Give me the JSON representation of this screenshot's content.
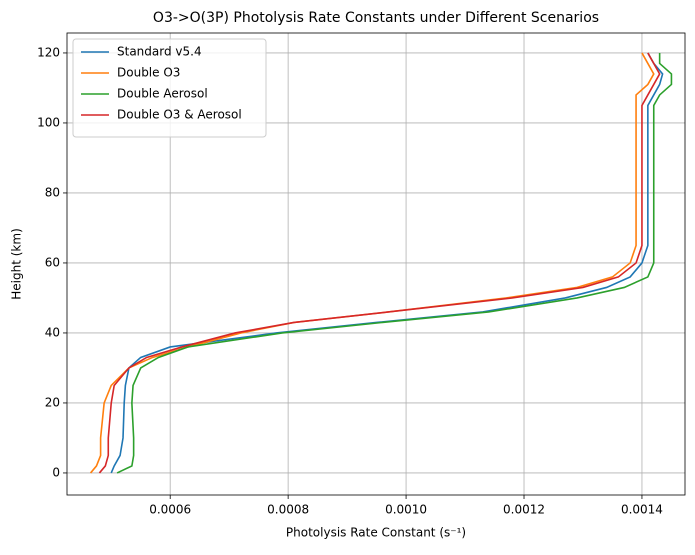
{
  "chart_data": {
    "type": "line",
    "title": "O3->O(3P) Photolysis Rate Constants under Different Scenarios",
    "xlabel": "Photolysis Rate Constant (s⁻¹)",
    "ylabel": "Height (km)",
    "y": [
      0,
      2,
      5,
      10,
      20,
      25,
      30,
      33,
      36,
      40,
      43,
      46,
      50,
      53,
      56,
      60,
      65,
      70,
      80,
      90,
      100,
      105,
      108,
      111,
      114,
      117,
      120
    ],
    "series": [
      {
        "name": "Standard v5.4",
        "color": "#1f77b4",
        "values": [
          0.0005,
          0.000505,
          0.000515,
          0.00052,
          0.000522,
          0.000524,
          0.00053,
          0.00055,
          0.0006,
          0.00078,
          0.00095,
          0.00113,
          0.00127,
          0.00134,
          0.00138,
          0.0014,
          0.00141,
          0.00141,
          0.00141,
          0.00141,
          0.00141,
          0.00141,
          0.00142,
          0.00143,
          0.001435,
          0.00142,
          0.00141
        ]
      },
      {
        "name": "Double O3",
        "color": "#ff7f0e",
        "values": [
          0.000465,
          0.000475,
          0.000482,
          0.000482,
          0.000488,
          0.0005,
          0.00053,
          0.00057,
          0.00063,
          0.00072,
          0.00081,
          0.00097,
          0.00117,
          0.00129,
          0.00135,
          0.00138,
          0.00139,
          0.00139,
          0.00139,
          0.00139,
          0.00139,
          0.00139,
          0.00139,
          0.00141,
          0.00142,
          0.00141,
          0.0014
        ]
      },
      {
        "name": "Double Aerosol",
        "color": "#2ca02c",
        "values": [
          0.00051,
          0.000535,
          0.000538,
          0.000538,
          0.000535,
          0.000537,
          0.00055,
          0.00058,
          0.00063,
          0.00079,
          0.00096,
          0.00114,
          0.00129,
          0.00137,
          0.00141,
          0.00142,
          0.00142,
          0.00142,
          0.00142,
          0.00142,
          0.00142,
          0.00142,
          0.00143,
          0.00145,
          0.00145,
          0.00143,
          0.00143
        ]
      },
      {
        "name": "Double O3 & Aerosol",
        "color": "#d62728",
        "values": [
          0.00048,
          0.00049,
          0.000495,
          0.000495,
          0.0005,
          0.000505,
          0.00053,
          0.00056,
          0.00062,
          0.00071,
          0.00081,
          0.00097,
          0.00118,
          0.0013,
          0.00136,
          0.00139,
          0.0014,
          0.0014,
          0.0014,
          0.0014,
          0.0014,
          0.0014,
          0.00141,
          0.00142,
          0.00143,
          0.00142,
          0.00141
        ]
      }
    ],
    "xlim": [
      0.000425,
      0.001473
    ],
    "ylim": [
      -6.3,
      125.7
    ],
    "xticks": [
      0.0006,
      0.0008,
      {
        "value": 0.001,
        "label": "0.0010"
      },
      0.0012,
      0.0014
    ],
    "yticks": [
      0,
      20,
      40,
      60,
      80,
      100,
      120
    ],
    "grid": true,
    "legend": "upper-left"
  }
}
